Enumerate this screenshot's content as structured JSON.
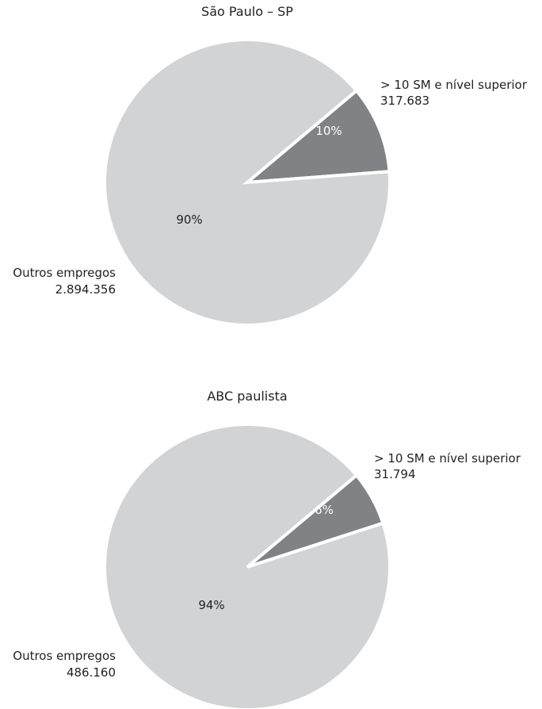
{
  "chart_data": [
    {
      "type": "pie",
      "title": "São Paulo – SP",
      "categories": [
        "> 10 SM e nível superior",
        "Outros empregos"
      ],
      "values": [
        317683,
        2894356
      ],
      "value_labels": [
        "317.683",
        "2.894.356"
      ],
      "percent_labels": [
        "10%",
        "90%"
      ],
      "colors": [
        "#818285",
        "#d2d3d5"
      ],
      "percent_label_colors": [
        "#ffffff",
        "#222222"
      ]
    },
    {
      "type": "pie",
      "title": "ABC paulista",
      "categories": [
        "> 10 SM e nível superior",
        "Outros empregos"
      ],
      "values": [
        31794,
        486160
      ],
      "value_labels": [
        "31.794",
        "486.160"
      ],
      "percent_labels": [
        "6%",
        "94%"
      ],
      "colors": [
        "#818285",
        "#d2d3d5"
      ],
      "percent_label_colors": [
        "#ffffff",
        "#222222"
      ]
    }
  ]
}
